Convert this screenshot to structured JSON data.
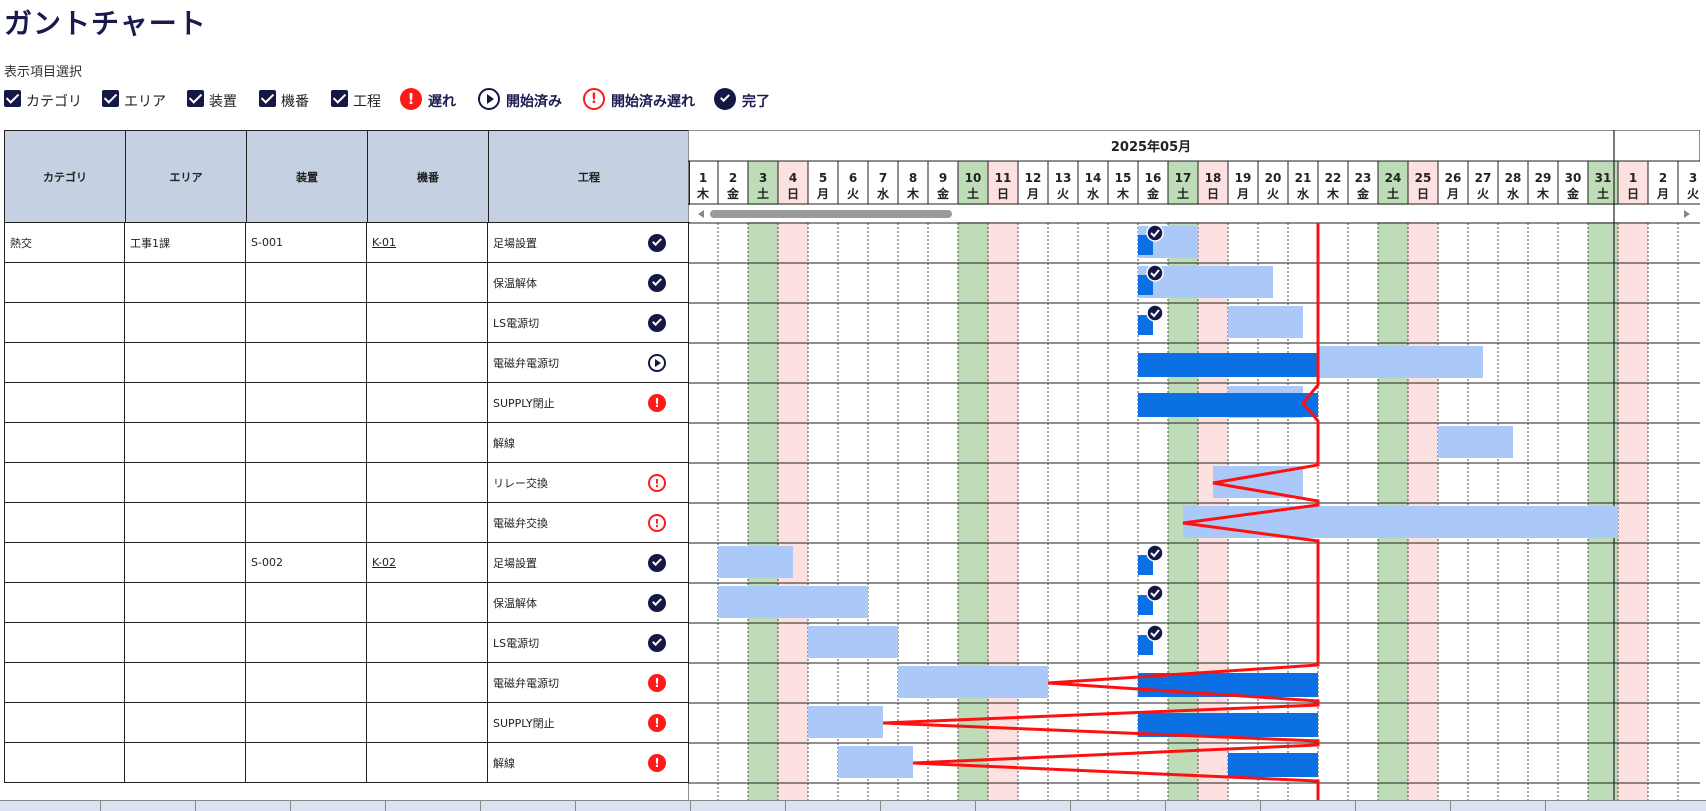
{
  "title": "ガントチャート",
  "selector_label": "表示項目選択",
  "checkboxes": [
    {
      "label": "カテゴリ",
      "checked": true
    },
    {
      "label": "エリア",
      "checked": true
    },
    {
      "label": "装置",
      "checked": true
    },
    {
      "label": "機番",
      "checked": true
    },
    {
      "label": "工程",
      "checked": true
    }
  ],
  "legend": [
    {
      "icon": "delayed-icon",
      "label": "遅れ"
    },
    {
      "icon": "started-icon",
      "label": "開始済み"
    },
    {
      "icon": "started-late-icon",
      "label": "開始済み遅れ"
    },
    {
      "icon": "complete-icon",
      "label": "完了"
    }
  ],
  "columns": [
    "カテゴリ",
    "エリア",
    "装置",
    "機番",
    "工程"
  ],
  "rows": [
    {
      "category": "熱交",
      "area": "工事1課",
      "device": "S-001",
      "machine": "K-01",
      "process": "足場設置",
      "status": "complete"
    },
    {
      "category": "",
      "area": "",
      "device": "",
      "machine": "",
      "process": "保温解体",
      "status": "complete"
    },
    {
      "category": "",
      "area": "",
      "device": "",
      "machine": "",
      "process": "LS電源切",
      "status": "complete"
    },
    {
      "category": "",
      "area": "",
      "device": "",
      "machine": "",
      "process": "電磁弁電源切",
      "status": "started"
    },
    {
      "category": "",
      "area": "",
      "device": "",
      "machine": "",
      "process": "SUPPLY閉止",
      "status": "delayed"
    },
    {
      "category": "",
      "area": "",
      "device": "",
      "machine": "",
      "process": "解線",
      "status": ""
    },
    {
      "category": "",
      "area": "",
      "device": "",
      "machine": "",
      "process": "リレー交換",
      "status": "started-late"
    },
    {
      "category": "",
      "area": "",
      "device": "",
      "machine": "",
      "process": "電磁弁交換",
      "status": "started-late"
    },
    {
      "category": "",
      "area": "",
      "device": "S-002",
      "machine": "K-02",
      "process": "足場設置",
      "status": "complete"
    },
    {
      "category": "",
      "area": "",
      "device": "",
      "machine": "",
      "process": "保温解体",
      "status": "complete"
    },
    {
      "category": "",
      "area": "",
      "device": "",
      "machine": "",
      "process": "LS電源切",
      "status": "complete"
    },
    {
      "category": "",
      "area": "",
      "device": "",
      "machine": "",
      "process": "電磁弁電源切",
      "status": "delayed"
    },
    {
      "category": "",
      "area": "",
      "device": "",
      "machine": "",
      "process": "SUPPLY閉止",
      "status": "delayed"
    },
    {
      "category": "",
      "area": "",
      "device": "",
      "machine": "",
      "process": "解線",
      "status": "delayed"
    }
  ],
  "gantt": {
    "month_label": "2025年05月",
    "days": [
      {
        "d": "1",
        "w": "木"
      },
      {
        "d": "2",
        "w": "金"
      },
      {
        "d": "3",
        "w": "土"
      },
      {
        "d": "4",
        "w": "日"
      },
      {
        "d": "5",
        "w": "月"
      },
      {
        "d": "6",
        "w": "火"
      },
      {
        "d": "7",
        "w": "水"
      },
      {
        "d": "8",
        "w": "木"
      },
      {
        "d": "9",
        "w": "金"
      },
      {
        "d": "10",
        "w": "土"
      },
      {
        "d": "11",
        "w": "日"
      },
      {
        "d": "12",
        "w": "月"
      },
      {
        "d": "13",
        "w": "火"
      },
      {
        "d": "14",
        "w": "水"
      },
      {
        "d": "15",
        "w": "木"
      },
      {
        "d": "16",
        "w": "金"
      },
      {
        "d": "17",
        "w": "土"
      },
      {
        "d": "18",
        "w": "日"
      },
      {
        "d": "19",
        "w": "月"
      },
      {
        "d": "20",
        "w": "火"
      },
      {
        "d": "21",
        "w": "水"
      },
      {
        "d": "22",
        "w": "木"
      },
      {
        "d": "23",
        "w": "金"
      },
      {
        "d": "24",
        "w": "土"
      },
      {
        "d": "25",
        "w": "日"
      },
      {
        "d": "26",
        "w": "月"
      },
      {
        "d": "27",
        "w": "火"
      },
      {
        "d": "28",
        "w": "水"
      },
      {
        "d": "29",
        "w": "木"
      },
      {
        "d": "30",
        "w": "金"
      },
      {
        "d": "31",
        "w": "土"
      },
      {
        "d": "1",
        "w": "日"
      },
      {
        "d": "2",
        "w": "月"
      },
      {
        "d": "3",
        "w": "火"
      }
    ],
    "today_day": 22,
    "tasks": [
      {
        "plan": [
          16,
          18
        ],
        "actual": [
          16,
          16.5
        ],
        "done": true
      },
      {
        "plan": [
          16,
          20.5
        ],
        "actual": [
          16,
          16.5
        ],
        "done": true
      },
      {
        "plan": [
          19,
          21.5
        ],
        "actual": [
          16,
          16.5
        ],
        "done": true
      },
      {
        "plan": [
          22,
          27.5
        ],
        "actual": [
          16,
          22
        ]
      },
      {
        "plan": [
          19,
          21.5
        ],
        "actual": [
          16,
          22
        ]
      },
      {
        "plan": [
          26,
          28.5
        ],
        "actual": null
      },
      {
        "plan": [
          18.5,
          21.5
        ],
        "actual": null
      },
      {
        "plan": [
          17.5,
          32
        ],
        "actual": null
      },
      {
        "plan": [
          2,
          4.5
        ],
        "actual": [
          16,
          16.5
        ],
        "done": true
      },
      {
        "plan": [
          2,
          7
        ],
        "actual": [
          16,
          16.5
        ],
        "done": true
      },
      {
        "plan": [
          5,
          8
        ],
        "actual": [
          16,
          16.5
        ],
        "done": true
      },
      {
        "plan": [
          8,
          13
        ],
        "actual": [
          16,
          22
        ]
      },
      {
        "plan": [
          5,
          7.5
        ],
        "actual": [
          16,
          22
        ]
      },
      {
        "plan": [
          6,
          8.5
        ],
        "actual": [
          19,
          22
        ]
      }
    ],
    "progress_points": [
      22,
      22,
      22,
      22,
      21.5,
      22,
      18.5,
      17.5,
      22,
      22,
      22,
      13,
      7.5,
      8.5
    ]
  },
  "colors": {
    "plan": "#aac9f9",
    "actual": "#0b70e3",
    "progress_line": "#ff1010",
    "saturday": "#bfdcb8",
    "sunday": "#fde0e0",
    "header_bg": "#c6d0e3",
    "navy": "#151845",
    "red": "#ff1a1a"
  }
}
